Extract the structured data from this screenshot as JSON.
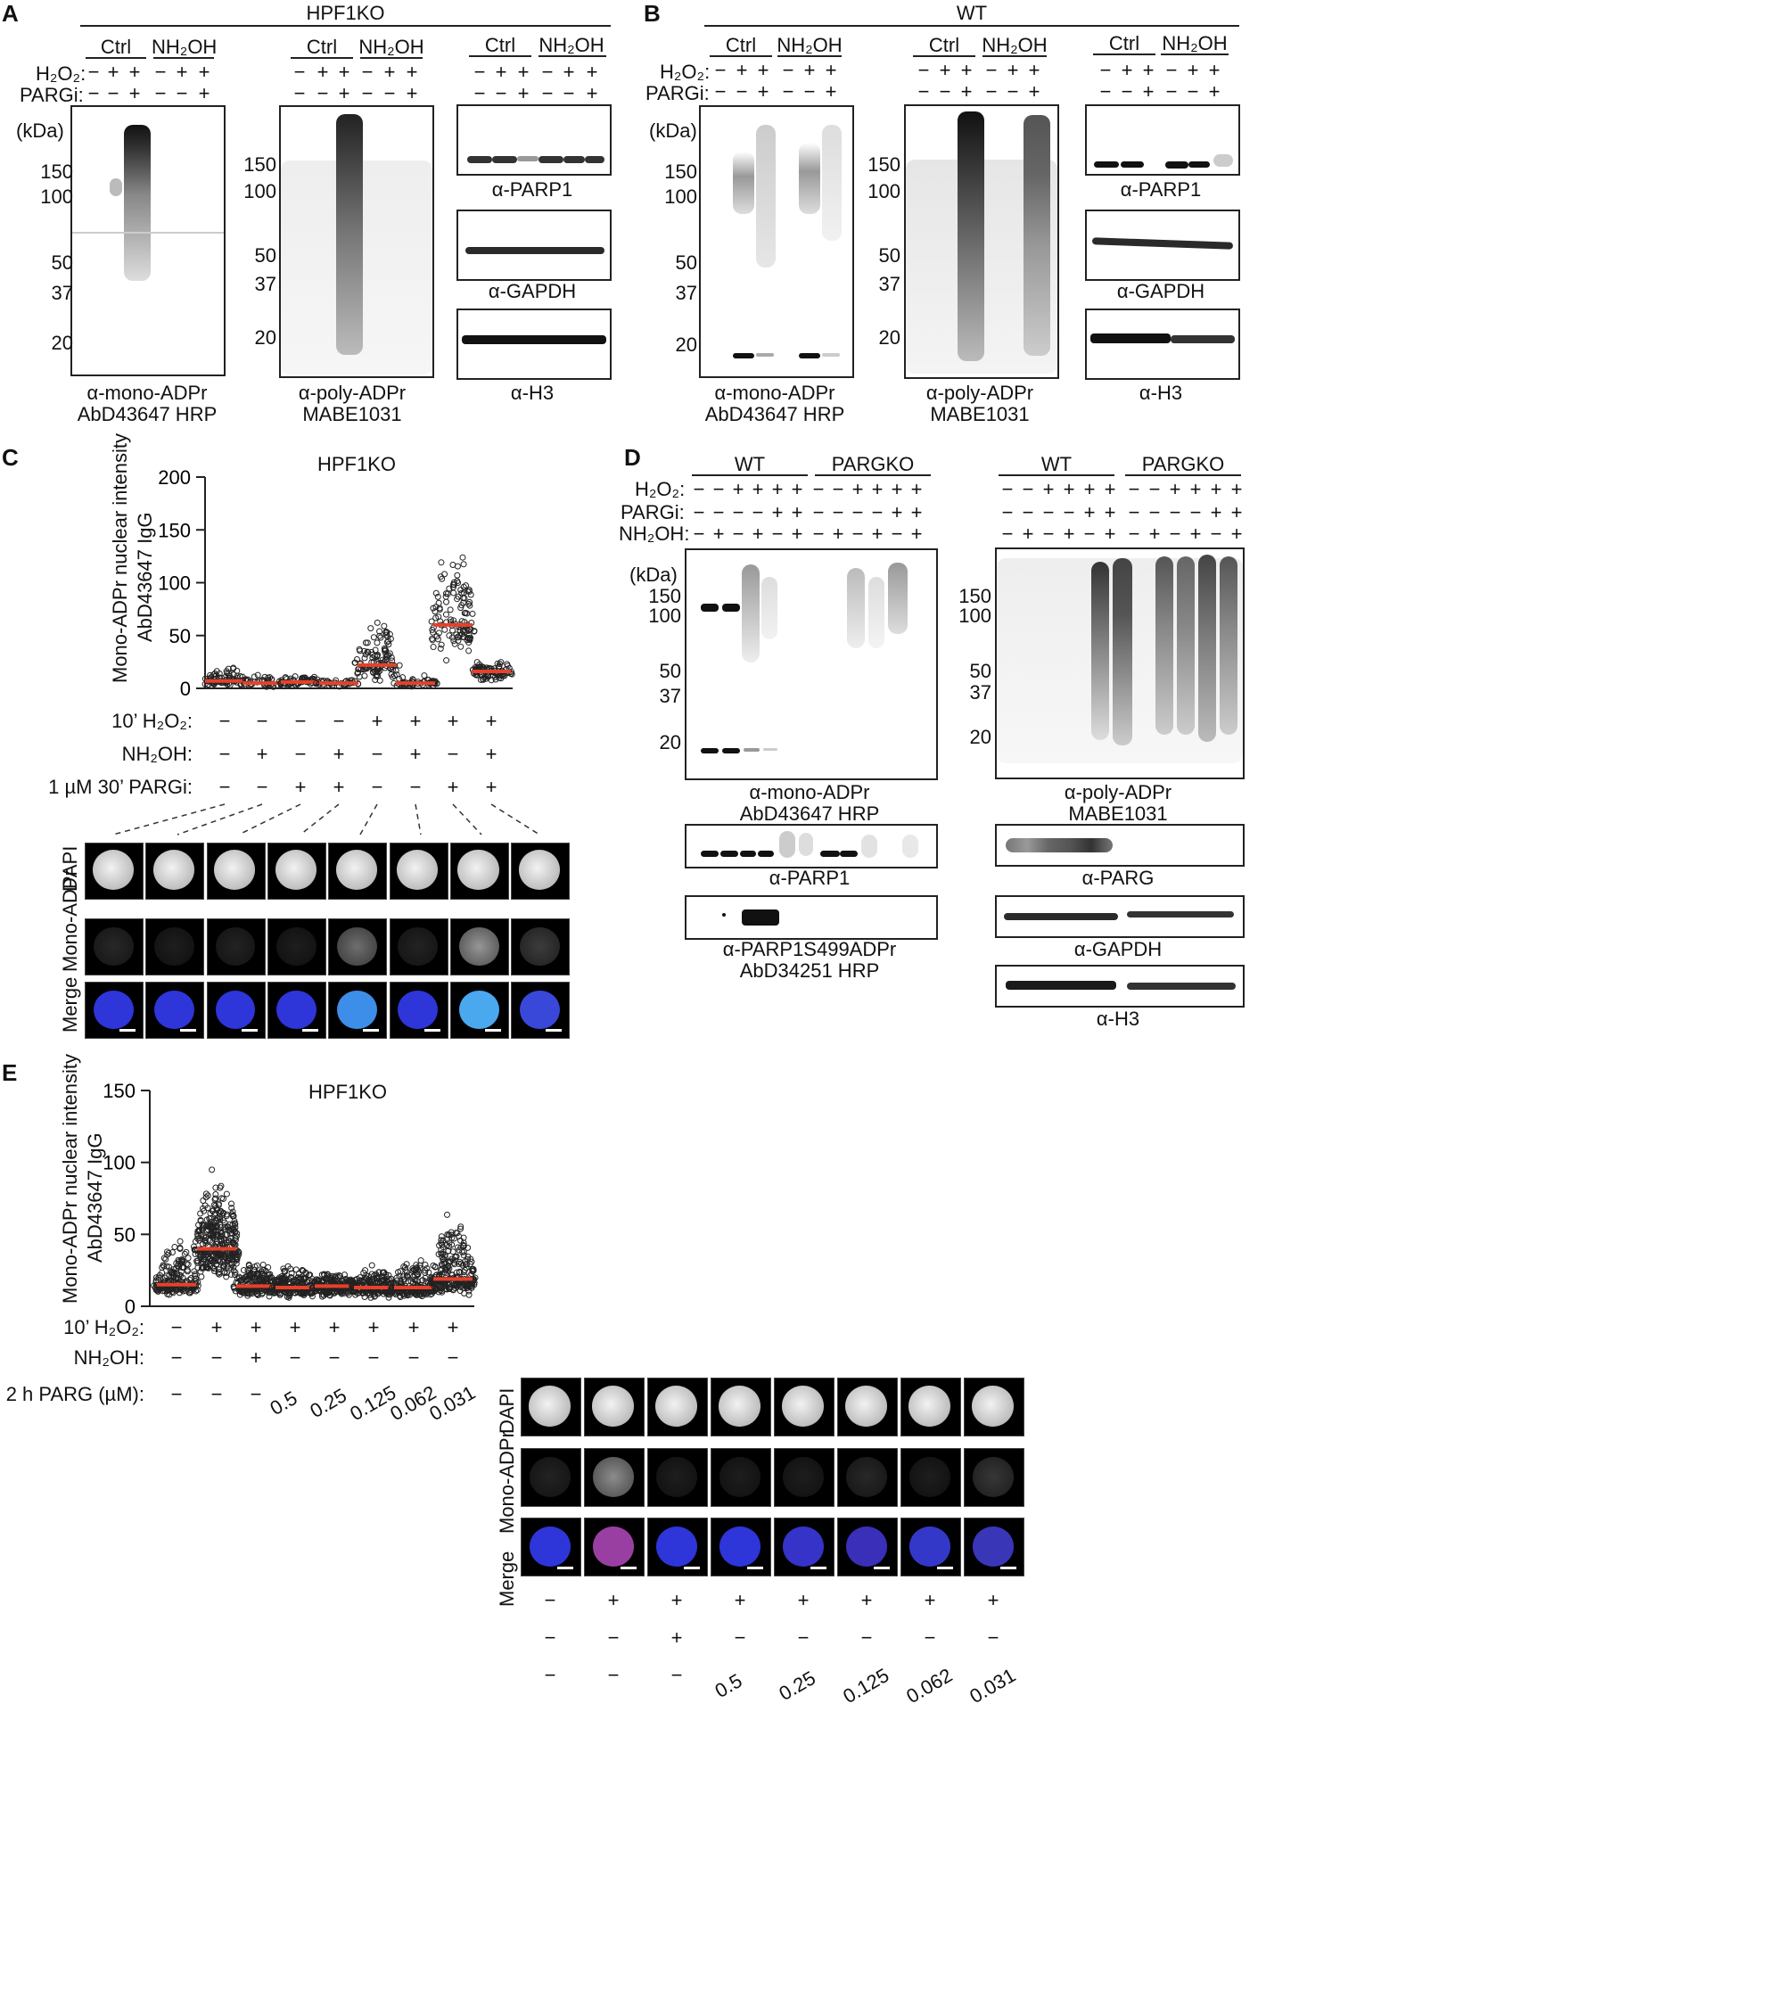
{
  "panels": {
    "A": {
      "letter": "A",
      "header": "HPF1KO",
      "groups": [
        "Ctrl",
        "NH₂OH"
      ],
      "row_h2o2": "H₂O₂:",
      "row_pargi": "PARGi:",
      "h2o2_signs": [
        "−",
        "+",
        "+",
        "−",
        "+",
        "+"
      ],
      "pargi_signs": [
        "−",
        "−",
        "+",
        "−",
        "−",
        "+"
      ],
      "kda": "(kDa)",
      "markers_mono": [
        "150",
        "100",
        "50",
        "37",
        "20"
      ],
      "markers_poly": [
        "150",
        "100",
        "50",
        "37",
        "20"
      ],
      "cap_mono": [
        "α-mono-ADPr",
        "AbD43647 HRP"
      ],
      "cap_poly": [
        "α-poly-ADPr",
        "MABE1031"
      ],
      "cap_parp1": "α-PARP1",
      "cap_gapdh": "α-GAPDH",
      "cap_h3": "α-H3"
    },
    "B": {
      "letter": "B",
      "header": "WT",
      "groups": [
        "Ctrl",
        "NH₂OH"
      ],
      "row_h2o2": "H₂O₂:",
      "row_pargi": "PARGi:",
      "h2o2_signs": [
        "−",
        "+",
        "+",
        "−",
        "+",
        "+"
      ],
      "pargi_signs": [
        "−",
        "−",
        "+",
        "−",
        "−",
        "+"
      ],
      "kda": "(kDa)",
      "markers_mono": [
        "150",
        "100",
        "50",
        "37",
        "20"
      ],
      "markers_poly": [
        "150",
        "100",
        "50",
        "37",
        "20"
      ],
      "cap_mono": [
        "α-mono-ADPr",
        "AbD43647 HRP"
      ],
      "cap_poly": [
        "α-poly-ADPr",
        "MABE1031"
      ],
      "cap_parp1": "α-PARP1",
      "cap_gapdh": "α-GAPDH",
      "cap_h3": "α-H3"
    },
    "C": {
      "letter": "C",
      "title": "HPF1KO",
      "ylabel": [
        "Mono-ADPr nuclear intensity",
        "AbD43647 IgG"
      ],
      "yticks": [
        "200",
        "150",
        "100",
        "50",
        "0"
      ],
      "rows": [
        {
          "label": "10’ H₂O₂:",
          "signs": [
            "−",
            "−",
            "−",
            "−",
            "+",
            "+",
            "+",
            "+"
          ]
        },
        {
          "label": "NH₂OH:",
          "signs": [
            "−",
            "+",
            "−",
            "+",
            "−",
            "+",
            "−",
            "+"
          ]
        },
        {
          "label": "1 µM 30’ PARGi:",
          "signs": [
            "−",
            "−",
            "+",
            "+",
            "−",
            "−",
            "+",
            "+"
          ]
        }
      ],
      "image_rows": [
        "DAPI",
        "Mono-ADPr",
        "Merge"
      ]
    },
    "D": {
      "letter": "D",
      "groups": [
        "WT",
        "PARGKO"
      ],
      "row_h2o2": "H₂O₂:",
      "row_pargi": "PARGi:",
      "row_nh2oh": "NH₂OH:",
      "h2o2_signs": [
        "−",
        "−",
        "+",
        "+",
        "+",
        "+",
        "−",
        "−",
        "+",
        "+",
        "+",
        "+"
      ],
      "pargi_signs": [
        "−",
        "−",
        "−",
        "−",
        "+",
        "+",
        "−",
        "−",
        "−",
        "−",
        "+",
        "+"
      ],
      "nh2oh_signs": [
        "−",
        "+",
        "−",
        "+",
        "−",
        "+",
        "−",
        "+",
        "−",
        "+",
        "−",
        "+"
      ],
      "kda": "(kDa)",
      "markers_mono": [
        "150",
        "100",
        "50",
        "37",
        "20"
      ],
      "markers_poly": [
        "150",
        "100",
        "50",
        "37",
        "20"
      ],
      "cap_mono": [
        "α-mono-ADPr",
        "AbD43647 HRP"
      ],
      "cap_poly": [
        "α-poly-ADPr",
        "MABE1031"
      ],
      "cap_parp1": "α-PARP1",
      "cap_s499": [
        "α-PARP1S499ADPr",
        "AbD34251 HRP"
      ],
      "cap_parg": "α-PARG",
      "cap_gapdh": "α-GAPDH",
      "cap_h3": "α-H3"
    },
    "E": {
      "letter": "E",
      "title": "HPF1KO",
      "ylabel": [
        "Mono-ADPr nuclear intensity",
        "AbD43647 IgG"
      ],
      "yticks": [
        "150",
        "100",
        "50",
        "0"
      ],
      "rows": [
        {
          "label": "10’ H₂O₂:",
          "signs": [
            "−",
            "+",
            "+",
            "+",
            "+",
            "+",
            "+",
            "+"
          ]
        },
        {
          "label": "NH₂OH:",
          "signs": [
            "−",
            "−",
            "+",
            "−",
            "−",
            "−",
            "−",
            "−"
          ]
        },
        {
          "label": "2 h PARG (µM):",
          "signs": [
            "−",
            "−",
            "−",
            "0.5",
            "0.25",
            "0.125",
            "0.062",
            "0.031"
          ]
        }
      ],
      "image_rows": [
        "DAPI",
        "Mono-ADPr",
        "Merge"
      ]
    }
  },
  "chart_data": [
    {
      "type": "scatter",
      "title": "HPF1KO",
      "ylabel": "Mono-ADPr nuclear intensity AbD43647 IgG",
      "ylim": [
        0,
        200
      ],
      "categories": [
        "1",
        "2",
        "3",
        "4",
        "5",
        "6",
        "7",
        "8"
      ],
      "medians": [
        7,
        5,
        6,
        5,
        22,
        5,
        60,
        16
      ],
      "spread": [
        [
          1,
          22
        ],
        [
          1,
          14
        ],
        [
          1,
          14
        ],
        [
          1,
          10
        ],
        [
          5,
          75
        ],
        [
          1,
          14
        ],
        [
          20,
          160
        ],
        [
          5,
          30
        ]
      ],
      "counts": [
        70,
        40,
        60,
        35,
        110,
        50,
        120,
        90
      ]
    },
    {
      "type": "scatter",
      "title": "HPF1KO",
      "ylabel": "Mono-ADPr nuclear intensity AbD43647 IgG",
      "ylim": [
        0,
        150
      ],
      "categories": [
        "1",
        "2",
        "3",
        "4",
        "5",
        "6",
        "7",
        "8"
      ],
      "medians": [
        15,
        40,
        14,
        13,
        14,
        13,
        13,
        19
      ],
      "spread": [
        [
          6,
          48
        ],
        [
          15,
          101
        ],
        [
          5,
          33
        ],
        [
          4,
          33
        ],
        [
          5,
          27
        ],
        [
          4,
          30
        ],
        [
          4,
          40
        ],
        [
          5,
          70
        ]
      ],
      "counts": [
        200,
        350,
        200,
        200,
        200,
        200,
        200,
        250
      ]
    }
  ],
  "colors": {
    "median": "#e8402a",
    "dapi_blue": "#2e35d9",
    "cyan": "#5fd0f0",
    "magenta": "#b04aa8"
  }
}
